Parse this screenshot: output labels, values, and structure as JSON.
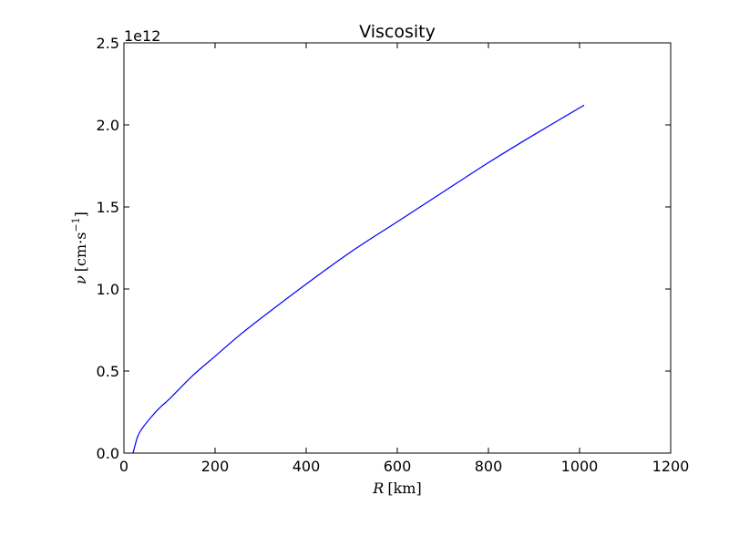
{
  "chart_data": {
    "type": "line",
    "title": "Viscosity",
    "xlabel_var": "R",
    "xlabel_unit": "[km]",
    "ylabel_var": "ν",
    "ylabel_unit": "[cm·s",
    "ylabel_exp": "−1",
    "ylabel_close": "]",
    "y_offset_label": "1e12",
    "xlim": [
      0,
      1200
    ],
    "ylim": [
      0,
      2.5
    ],
    "x_ticks": [
      0,
      200,
      400,
      600,
      800,
      1000,
      1200
    ],
    "x_tick_labels": [
      "0",
      "200",
      "400",
      "600",
      "800",
      "1000",
      "1200"
    ],
    "y_ticks": [
      0,
      0.5,
      1.0,
      1.5,
      2.0,
      2.5
    ],
    "y_tick_labels": [
      "0.0",
      "0.5",
      "1.0",
      "1.5",
      "2.0",
      "2.5"
    ],
    "grid": false,
    "series": [
      {
        "color": "#0000ff",
        "x": [
          20,
          30,
          40,
          60,
          80,
          100,
          150,
          200,
          250,
          300,
          400,
          500,
          600,
          700,
          800,
          900,
          1010
        ],
        "y": [
          0.0,
          0.1,
          0.15,
          0.22,
          0.28,
          0.33,
          0.47,
          0.59,
          0.71,
          0.82,
          1.03,
          1.23,
          1.41,
          1.59,
          1.77,
          1.94,
          2.12
        ]
      }
    ]
  }
}
